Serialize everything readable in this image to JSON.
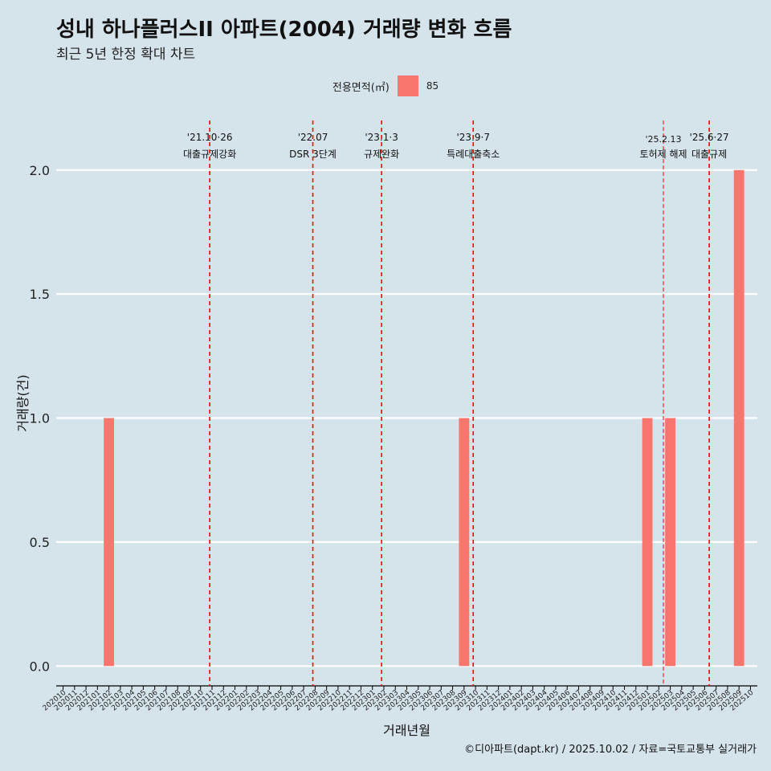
{
  "title": "성내 하나플러스II 아파트(2004) 거래량 변화 흐름",
  "subtitle": "최근 5년 한정 확대 차트",
  "legend": {
    "title": "전용면적(㎡)",
    "label": "85"
  },
  "caption": "©디아파트(dapt.kr) / 2025.10.02 / 자료=국토교통부 실거래가",
  "colors": {
    "bar": "#f8766d",
    "event_line": "#ff0000",
    "background": "#d5e4eb",
    "grid": "#ffffff"
  },
  "chart_data": {
    "type": "bar",
    "xlabel": "거래년월",
    "ylabel": "거래량(건)",
    "ylim": [
      -0.08,
      2.2
    ],
    "yticks": [
      "0.0",
      "0.5",
      "1.0",
      "1.5",
      "2.0"
    ],
    "categories": [
      "202010",
      "202011",
      "202012",
      "202101",
      "202102",
      "202103",
      "202104",
      "202105",
      "202106",
      "202107",
      "202108",
      "202109",
      "202110",
      "202111",
      "202112",
      "202201",
      "202202",
      "202203",
      "202204",
      "202205",
      "202206",
      "202207",
      "202208",
      "202209",
      "202210",
      "202211",
      "202212",
      "202301",
      "202302",
      "202303",
      "202304",
      "202305",
      "202306",
      "202307",
      "202308",
      "202309",
      "202310",
      "202311",
      "202312",
      "202401",
      "202402",
      "202403",
      "202404",
      "202405",
      "202406",
      "202407",
      "202408",
      "202409",
      "202410",
      "202411",
      "202412",
      "202501",
      "202502",
      "202503",
      "202504",
      "202505",
      "202506",
      "202507",
      "202508",
      "202509",
      "202510"
    ],
    "series": [
      {
        "name": "85",
        "values": [
          0,
          0,
          0,
          0,
          1,
          0,
          0,
          0,
          0,
          0,
          0,
          0,
          0,
          0,
          0,
          0,
          0,
          0,
          0,
          0,
          0,
          0,
          0,
          0,
          0,
          0,
          0,
          0,
          0,
          0,
          0,
          0,
          0,
          0,
          0,
          1,
          0,
          0,
          0,
          0,
          0,
          0,
          0,
          0,
          0,
          0,
          0,
          0,
          0,
          0,
          0,
          1,
          0,
          1,
          0,
          0,
          0,
          0,
          0,
          2,
          0
        ]
      }
    ],
    "events": [
      {
        "date": "'21.10·26",
        "label": "대출규제강화",
        "x": 12.8,
        "style": "dashed"
      },
      {
        "date": "'22.07",
        "label": "DSR 3단계",
        "x": 21.8,
        "style": "dashed"
      },
      {
        "date": "'23.1·3",
        "label": "규제완화",
        "x": 27.8,
        "style": "dashed"
      },
      {
        "date": "'23.9·7",
        "label": "특례대출축소",
        "x": 35.8,
        "style": "dashed"
      },
      {
        "date": "'25.2.13",
        "label": "토허제 해제",
        "x": 52.4,
        "style": "fine"
      },
      {
        "date": "'25.6·27",
        "label": "대출규제",
        "x": 56.4,
        "style": "dashed"
      }
    ]
  }
}
